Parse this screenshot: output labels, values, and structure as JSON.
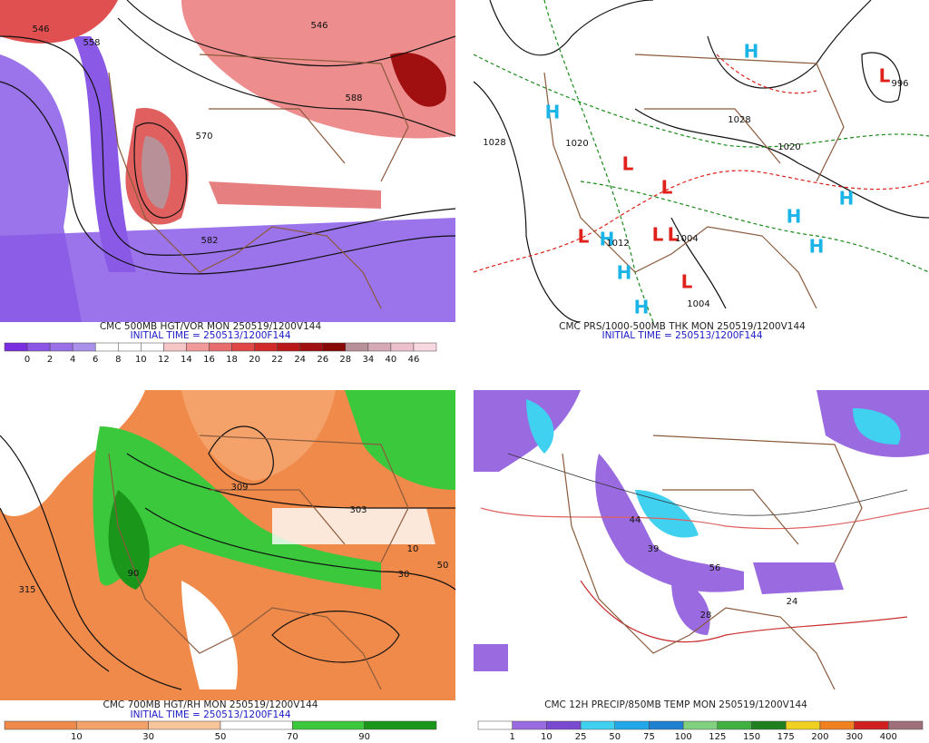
{
  "panels": [
    {
      "title": "CMC 500MB HGT/VOR MON 250519/1200V144",
      "initial_time": "INITIAL TIME = 250513/1200F144",
      "colorbar_labels": [
        0,
        2,
        4,
        6,
        8,
        10,
        12,
        14,
        16,
        18,
        20,
        22,
        24,
        26,
        28,
        34,
        40,
        46
      ],
      "colorbar_colors": [
        "#7a2ee0",
        "#8b55e6",
        "#9a70e8",
        "#aa90ea",
        "#ffffff",
        "#ffffff",
        "#ffffff",
        "#f6c6c6",
        "#f09a9a",
        "#e86e6e",
        "#e04848",
        "#d02a2a",
        "#b81818",
        "#a01010",
        "#880808",
        "#b89098",
        "#d4a8b4",
        "#ecc0cc",
        "#f8d8e0"
      ],
      "map_labels": [
        "546",
        "558",
        "546",
        "570",
        "582",
        "588"
      ]
    },
    {
      "title": "CMC PRS/1000-500MB THK MON 250519/1200V144",
      "initial_time": "INITIAL TIME = 250513/1200F144",
      "map_labels": [
        "H",
        "H",
        "H",
        "H",
        "H",
        "H",
        "H",
        "H",
        "L",
        "L",
        "L",
        "L",
        "L",
        "L",
        "L",
        "1028",
        "1020",
        "1028",
        "1020",
        "1004",
        "1004",
        "996",
        "1012"
      ]
    },
    {
      "title": "CMC 700MB HGT/RH MON 250519/1200V144",
      "initial_time": "INITIAL TIME = 250513/1200F144",
      "colorbar_labels": [
        10,
        30,
        50,
        70,
        90
      ],
      "colorbar_colors": [
        "#f08a4a",
        "#f4a26a",
        "#f8c49a",
        "#ffffff",
        "#3cc83c",
        "#1a961a"
      ],
      "map_labels": [
        "309",
        "303",
        "315",
        "10",
        "30",
        "50",
        "90"
      ]
    },
    {
      "title": "CMC 12H PRECIP/850MB TEMP MON 250519/1200V144",
      "colorbar_labels": [
        1,
        10,
        25,
        50,
        75,
        100,
        125,
        150,
        175,
        200,
        300,
        400
      ],
      "colorbar_colors": [
        "#ffffff",
        "#9a6ae0",
        "#7a4ad0",
        "#40d0f0",
        "#20a8e8",
        "#2080d0",
        "#80d080",
        "#40b040",
        "#208020",
        "#f0d020",
        "#f08020",
        "#d02020",
        "#a0707a"
      ],
      "map_labels": [
        "44",
        "39",
        "56",
        "28",
        "24"
      ]
    }
  ]
}
